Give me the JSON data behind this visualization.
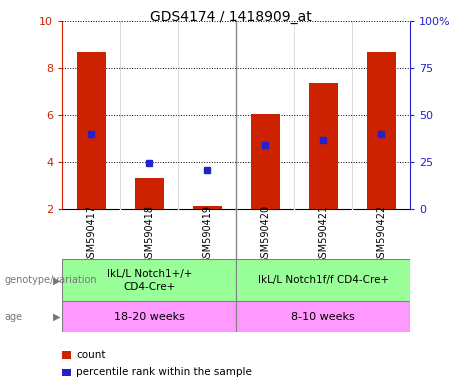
{
  "title": "GDS4174 / 1418909_at",
  "samples": [
    "GSM590417",
    "GSM590418",
    "GSM590419",
    "GSM590420",
    "GSM590421",
    "GSM590422"
  ],
  "bar_bottoms": [
    2,
    2,
    2,
    2,
    2,
    2
  ],
  "bar_tops": [
    8.7,
    3.35,
    2.15,
    6.05,
    7.35,
    8.7
  ],
  "blue_y": [
    5.2,
    3.95,
    3.65,
    4.75,
    4.95,
    5.2
  ],
  "ylim": [
    2,
    10
  ],
  "yticks_left": [
    2,
    4,
    6,
    8,
    10
  ],
  "yticks_right": [
    0,
    25,
    50,
    75,
    100
  ],
  "bar_color": "#CC2200",
  "blue_color": "#2222CC",
  "group1_label": "IkL/L Notch1+/+\nCD4-Cre+",
  "group2_label": "IkL/L Notch1f/f CD4-Cre+",
  "age1_label": "18-20 weeks",
  "age2_label": "8-10 weeks",
  "genotype_label": "genotype/variation",
  "age_label": "age",
  "legend_count": "count",
  "legend_pct": "percentile rank within the sample",
  "group1_color": "#99FF99",
  "group2_color": "#99FF99",
  "age1_color": "#FF99FF",
  "age2_color": "#FF99FF",
  "left_axis_color": "#CC2200",
  "right_axis_color": "#2222CC",
  "sample_bg_color": "#D8D8D8",
  "separator_color": "#888888"
}
